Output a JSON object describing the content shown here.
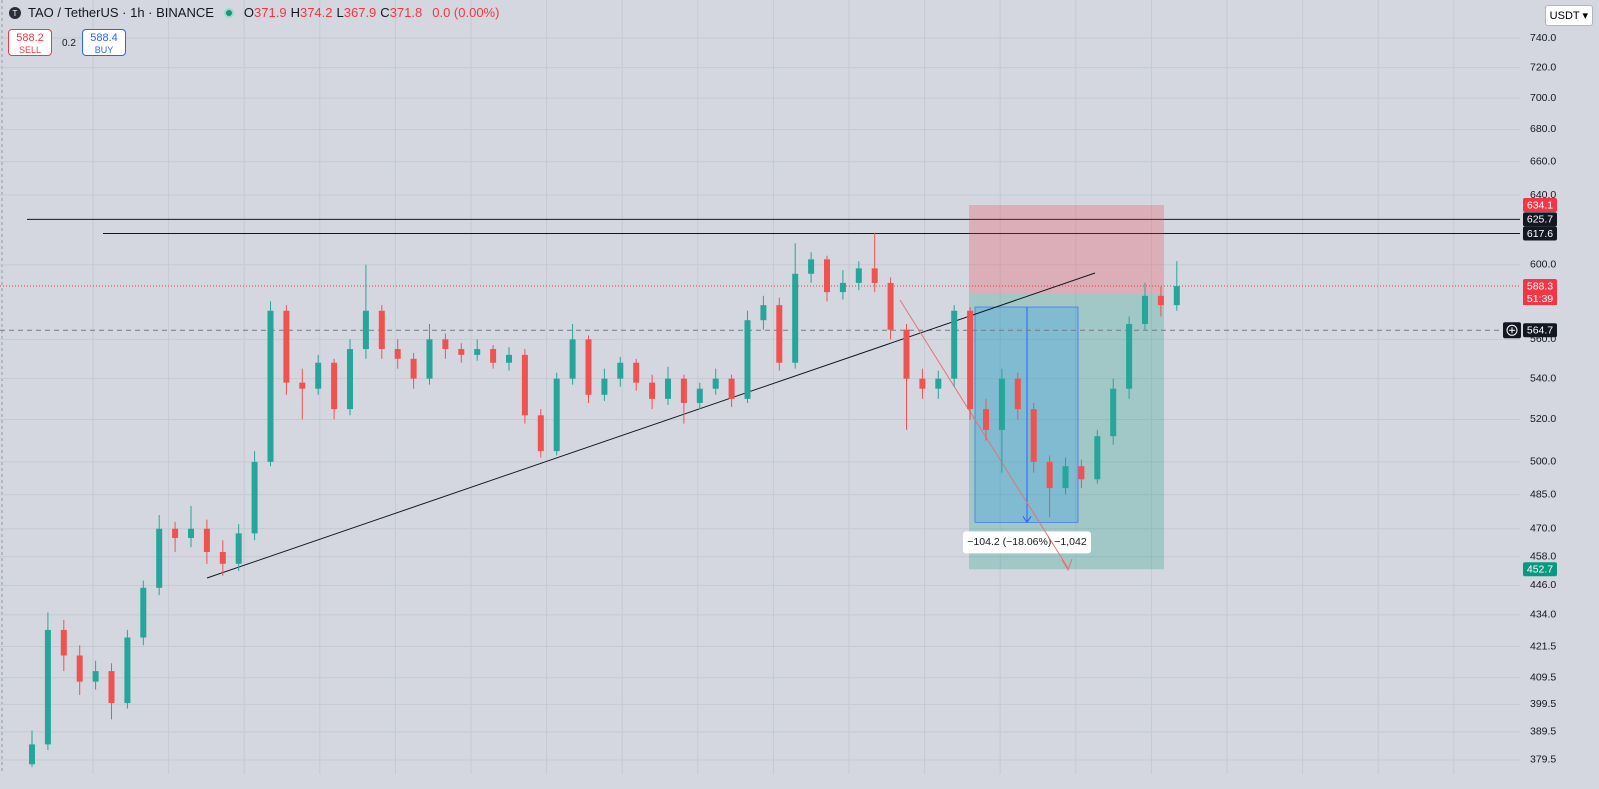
{
  "chart_data": {
    "type": "candlestick",
    "title": "TAO / TetherUS · 1h · BINANCE",
    "ohlc": [
      {
        "label": "O",
        "value": 371.9
      },
      {
        "label": "H",
        "value": 374.2
      },
      {
        "label": "L",
        "value": 367.9
      },
      {
        "label": "C",
        "value": 371.8
      }
    ],
    "change": "0.0 (0.00%)",
    "sell": {
      "price": 588.2,
      "label": "SELL"
    },
    "spread": 0.2,
    "buy": {
      "price": 588.4,
      "label": "BUY"
    },
    "currency": "USDT",
    "log_scale": true,
    "grid": true,
    "ylim": [
      374.6,
      766.5
    ],
    "yticks": [
      {
        "value": 740,
        "label": "740.0"
      },
      {
        "value": 720,
        "label": "720.0"
      },
      {
        "value": 700,
        "label": "700.0"
      },
      {
        "value": 680,
        "label": "680.0"
      },
      {
        "value": 660,
        "label": "660.0"
      },
      {
        "value": 640,
        "label": "640.0"
      },
      {
        "value": 600,
        "label": "600.0"
      },
      {
        "value": 560,
        "label": "560.0"
      },
      {
        "value": 540,
        "label": "540.0"
      },
      {
        "value": 520,
        "label": "520.0"
      },
      {
        "value": 500,
        "label": "500.0"
      },
      {
        "value": 485,
        "label": "485.0"
      },
      {
        "value": 470,
        "label": "470.0"
      },
      {
        "value": 458,
        "label": "458.0"
      },
      {
        "value": 446,
        "label": "446.0"
      },
      {
        "value": 434,
        "label": "434.0"
      },
      421.5,
      409.5,
      399.5,
      389.5,
      379.5
    ],
    "up_color": "#26a69a",
    "down_color": "#ef5350",
    "open": [
      378,
      385,
      428,
      418,
      408,
      412,
      400,
      425,
      445,
      470,
      466,
      470,
      460,
      455,
      468,
      500,
      575,
      538,
      535,
      548,
      525,
      555,
      575,
      555,
      550,
      540,
      560,
      555,
      552,
      555,
      548,
      552,
      522,
      505,
      540,
      560,
      532,
      540,
      548,
      538,
      530,
      540,
      528,
      535,
      540,
      530,
      570,
      578,
      548,
      595,
      603,
      585,
      590,
      598,
      590,
      565,
      540,
      535,
      540,
      575,
      525,
      515,
      540,
      525,
      500,
      488,
      498,
      492,
      512,
      535,
      568,
      583,
      578
    ],
    "high": [
      390,
      435,
      432,
      422,
      416,
      415,
      428,
      448,
      476,
      473,
      480,
      474,
      465,
      472,
      505,
      580,
      578,
      545,
      552,
      550,
      560,
      600,
      578,
      560,
      553,
      568,
      563,
      558,
      560,
      557,
      556,
      555,
      525,
      543,
      568,
      562,
      545,
      551,
      550,
      542,
      546,
      542,
      538,
      545,
      542,
      575,
      583,
      582,
      612,
      607,
      605,
      597,
      602,
      618,
      593,
      568,
      545,
      544,
      578,
      577,
      530,
      545,
      543,
      528,
      503,
      502,
      501,
      515,
      540,
      572,
      590,
      588,
      602
    ],
    "low": [
      377,
      383,
      412,
      403,
      405,
      394,
      398,
      422,
      442,
      460,
      462,
      455,
      450,
      452,
      465,
      498,
      532,
      520,
      532,
      520,
      522,
      550,
      550,
      545,
      535,
      537,
      550,
      548,
      549,
      545,
      544,
      518,
      502,
      503,
      537,
      528,
      529,
      536,
      534,
      525,
      527,
      518,
      525,
      532,
      526,
      528,
      565,
      544,
      545,
      590,
      580,
      581,
      586,
      585,
      560,
      515,
      530,
      530,
      536,
      520,
      510,
      495,
      520,
      495,
      475,
      485,
      488,
      490,
      508,
      530,
      565,
      572,
      575
    ],
    "close": [
      385,
      428,
      418,
      408,
      412,
      400,
      425,
      445,
      470,
      466,
      470,
      460,
      455,
      468,
      500,
      575,
      538,
      535,
      548,
      525,
      555,
      575,
      555,
      550,
      540,
      560,
      555,
      552,
      555,
      548,
      552,
      522,
      505,
      540,
      560,
      532,
      540,
      548,
      538,
      530,
      540,
      528,
      535,
      540,
      530,
      570,
      578,
      548,
      595,
      603,
      585,
      590,
      598,
      590,
      565,
      540,
      535,
      540,
      575,
      525,
      515,
      540,
      525,
      500,
      488,
      498,
      492,
      512,
      535,
      568,
      583,
      578,
      588.3
    ],
    "hlines": [
      625.7,
      617.6
    ],
    "position": {
      "stop": 634.1,
      "entry": 583.9,
      "target": 452.7
    },
    "last_price": {
      "value": 588.3,
      "countdown": "51:39"
    },
    "crosshair": 564.7,
    "measure": {
      "from": 577,
      "to": 472.8,
      "label": "−104.2 (−18.06%) −1,042"
    }
  }
}
